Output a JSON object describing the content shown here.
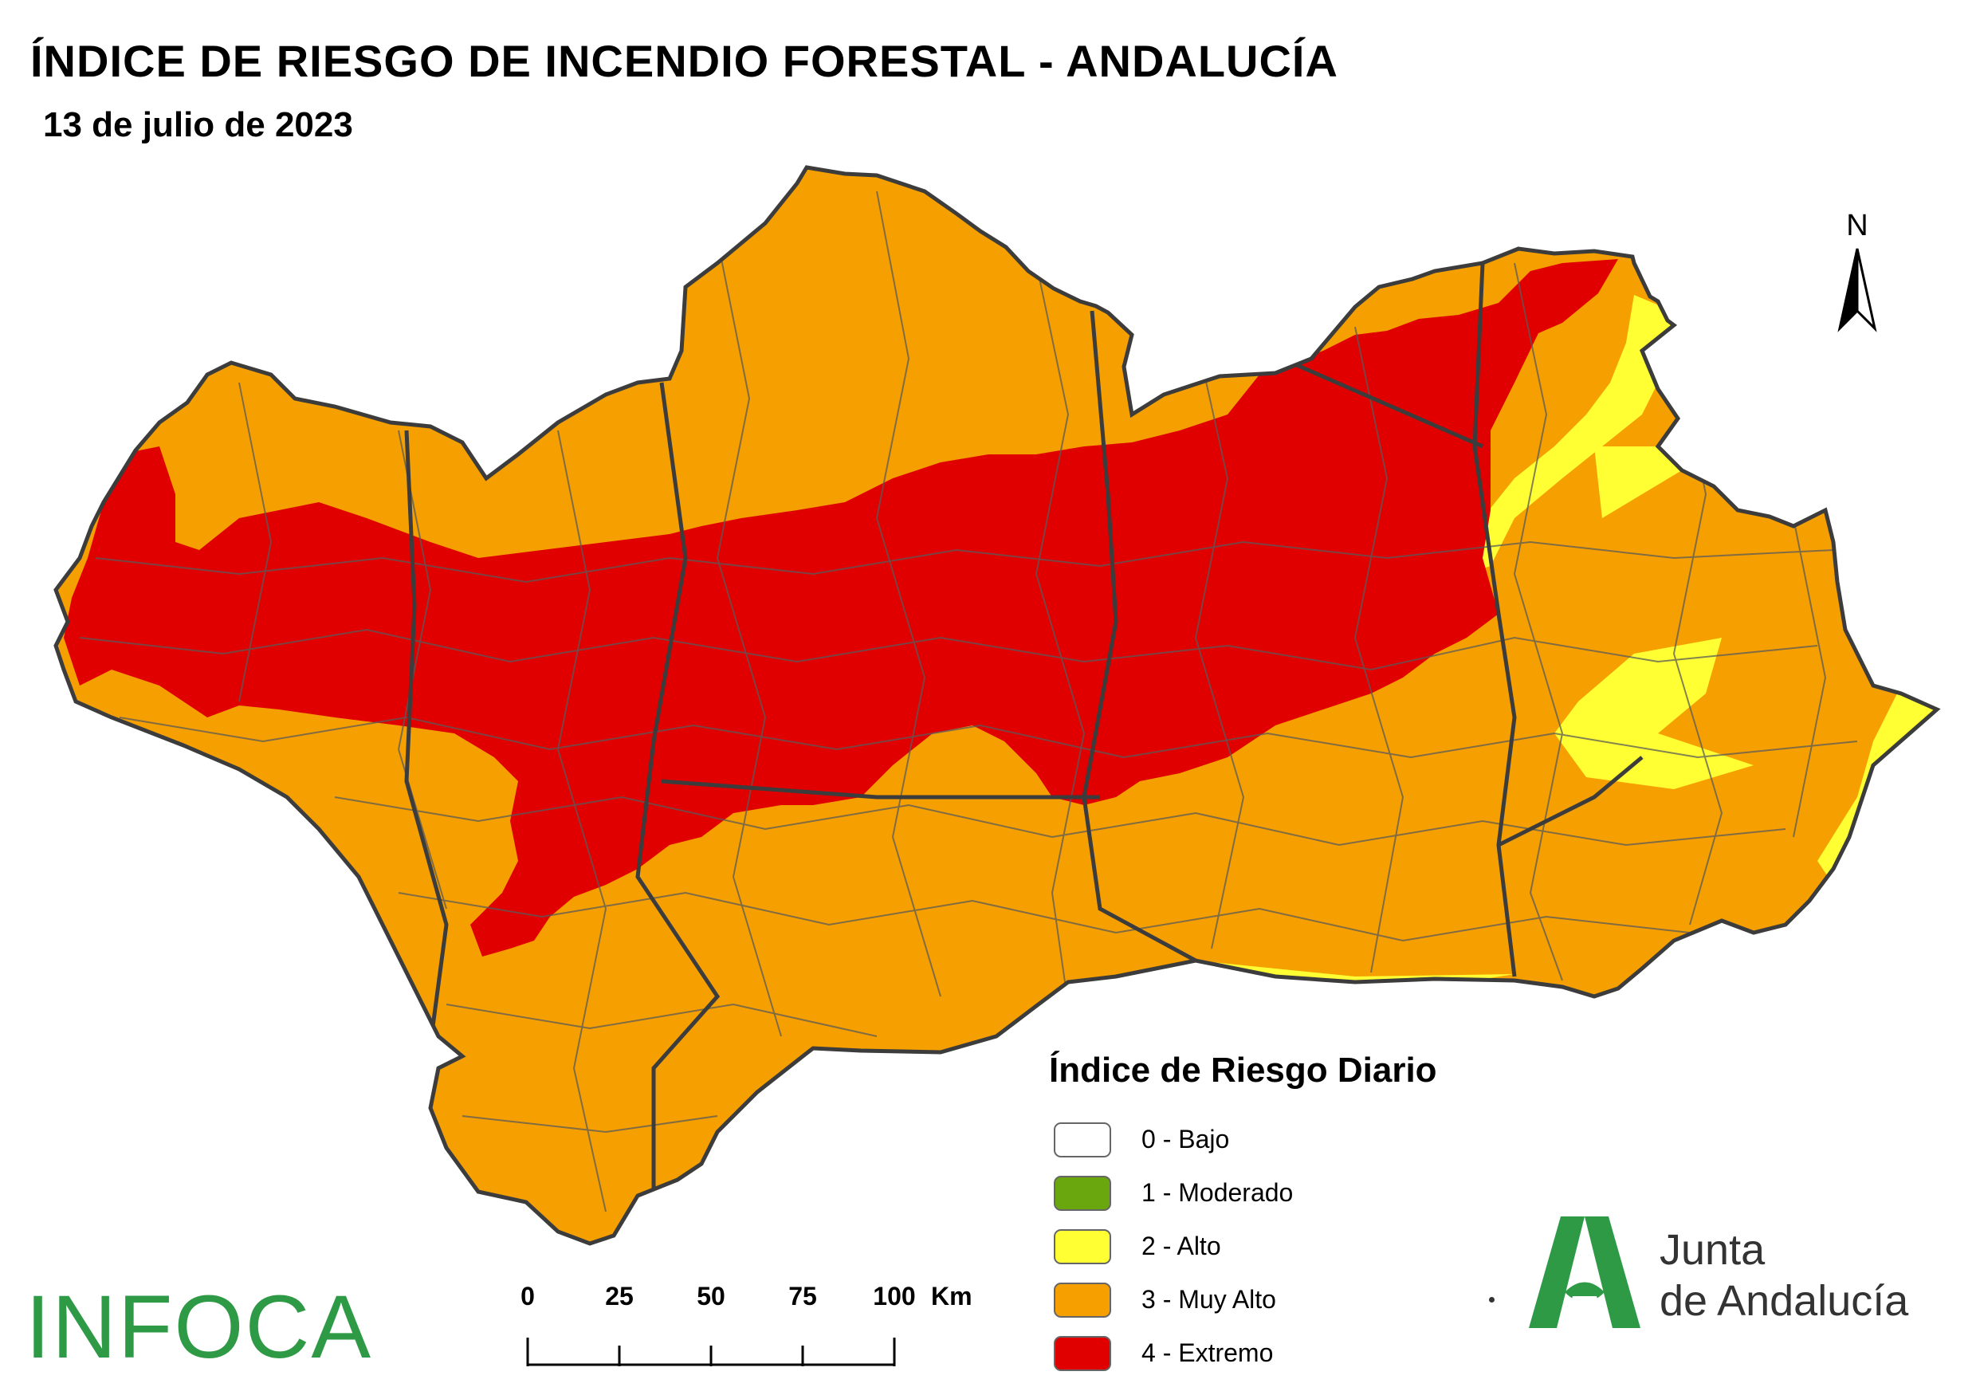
{
  "title": "ÍNDICE DE RIESGO DE INCENDIO FORESTAL - ANDALUCÍA",
  "date": "13 de julio de 2023",
  "north_label": "N",
  "legend": {
    "title": "Índice de Riesgo Diario",
    "items": [
      {
        "label": "0 - Bajo",
        "color": "#ffffff"
      },
      {
        "label": "1 - Moderado",
        "color": "#6aa70e"
      },
      {
        "label": "2 - Alto",
        "color": "#ffff33"
      },
      {
        "label": "3 - Muy Alto",
        "color": "#f5a000"
      },
      {
        "label": "4 - Extremo",
        "color": "#e00000"
      }
    ]
  },
  "scale": {
    "ticks": [
      "0",
      "25",
      "50",
      "75",
      "100"
    ],
    "unit": "Km"
  },
  "map_colors": {
    "extremo": "#e00000",
    "muy_alto": "#f5a000",
    "alto": "#ffff33",
    "borders": "#5a5a5a"
  },
  "branding": {
    "infoca": "INFOCA",
    "junta_line1": "Junta",
    "junta_line2": "de Andalucía",
    "junta_green": "#2e9a46"
  }
}
